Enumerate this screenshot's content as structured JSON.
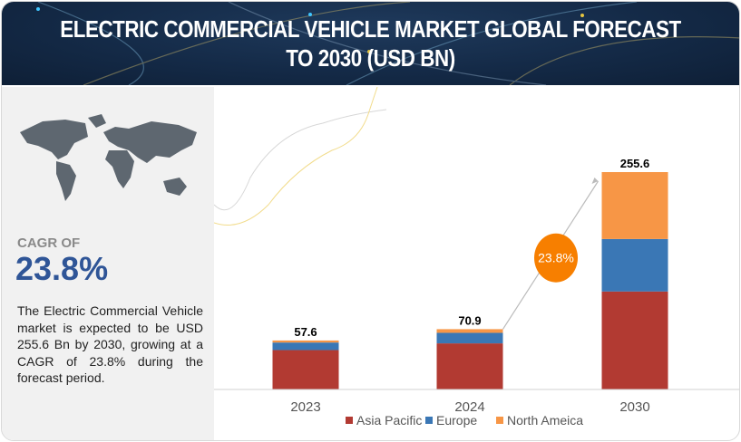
{
  "header": {
    "title": "ELECTRIC COMMERCIAL VEHICLE MARKET GLOBAL FORECAST TO 2030 (USD BN)"
  },
  "sidebar": {
    "map_icon": "world-map",
    "cagr_label": "CAGR OF",
    "cagr_value": "23.8%",
    "description": "The Electric Commercial Vehicle market is expected to be USD 255.6 Bn by 2030, growing at a CAGR of 23.8% during the forecast period."
  },
  "chart_data": {
    "type": "bar",
    "stacked": true,
    "title": "ELECTRIC COMMERCIAL VEHICLE MARKET GLOBAL FORECAST TO 2030 (USD BN)",
    "categories": [
      "2023",
      "2024",
      "2030"
    ],
    "totals": [
      "57.6",
      "70.9",
      "255.6"
    ],
    "total_values": [
      57.6,
      70.9,
      255.6
    ],
    "series": [
      {
        "name": "Asia Pacific",
        "color": "#b23a32",
        "values": [
          46.3,
          54.2,
          115.2
        ]
      },
      {
        "name": "Europe",
        "color": "#3a77b5",
        "values": [
          8.9,
          12.4,
          61.7
        ]
      },
      {
        "name": "North Ameica",
        "color": "#f79646",
        "values": [
          2.4,
          4.3,
          78.7
        ]
      }
    ],
    "annotation": {
      "label": "23.8%",
      "color": "#f77f00",
      "from": "2024",
      "to": "2030"
    },
    "ylim": [
      0,
      255.6
    ],
    "grid": false,
    "legend": "bottom"
  }
}
